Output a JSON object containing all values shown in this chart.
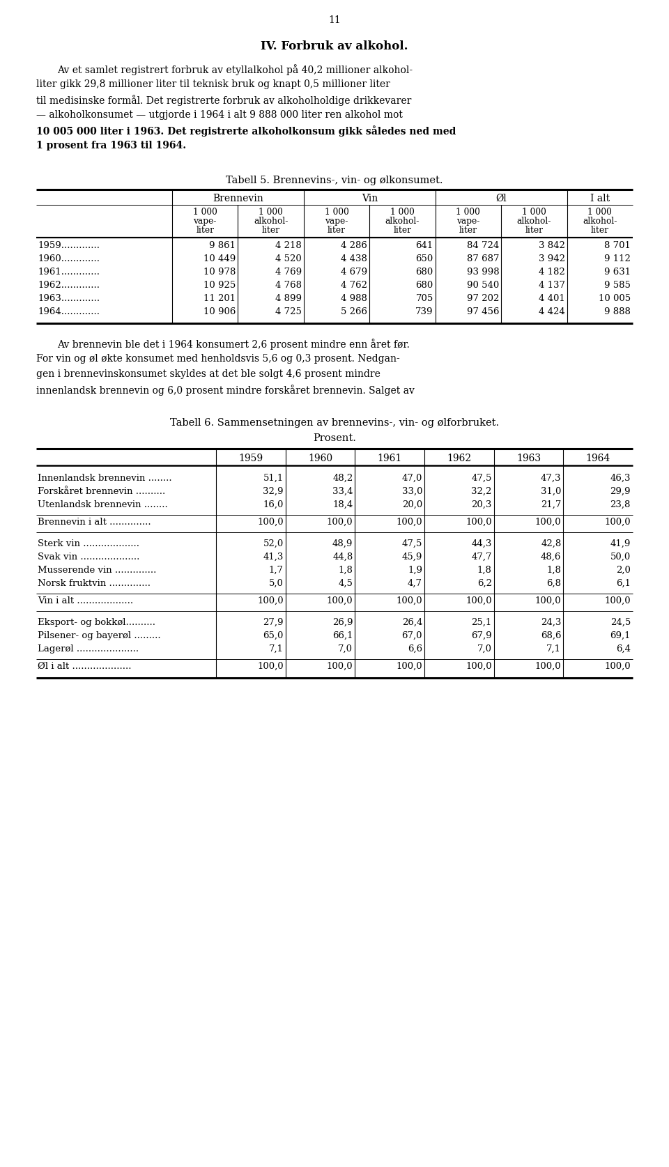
{
  "page_number": "11",
  "section_title": "IV. Forbruk av alkohol.",
  "paragraph1_lines": [
    "Av et samlet registrert forbruk av etyllalkohol på 40,2 millioner alkohol-",
    "liter gikk 29,8 millioner liter til teknisk bruk og knapt 0,5 millioner liter",
    "til medisinske formål. Det registrerte forbruk av alkoholholdige drikkevarer",
    "— alkoholkonsumet — utgjorde i 1964 i alt 9 888 000 liter ren alkohol mot",
    "10 005 000 liter i 1963. Det registrerte alkoholkonsum gikk således ned med",
    "1 prosent fra 1963 til 1964."
  ],
  "paragraph1_bold_from": 4,
  "table5_title": "Tabell 5. Brennevins-, vin- og ølkonsumet.",
  "table5_col_headers": [
    "Brennevin",
    "Vin",
    "Øl",
    "I alt"
  ],
  "table5_sub_headers": [
    "1 000\nvaре-\nliter",
    "1 000\nalkohol-\nliter",
    "1 000\nvaре-\nliter",
    "1 000\nalkohol-\nliter",
    "1 000\nvaре-\nliter",
    "1 000\nalkohol-\nliter",
    "1 000\nalkohol-\nliter"
  ],
  "table5_rows": [
    [
      "1959.............",
      "9 861",
      "4 218",
      "4 286",
      "641",
      "84 724",
      "3 842",
      "8 701"
    ],
    [
      "1960.............",
      "10 449",
      "4 520",
      "4 438",
      "650",
      "87 687",
      "3 942",
      "9 112"
    ],
    [
      "1961.............",
      "10 978",
      "4 769",
      "4 679",
      "680",
      "93 998",
      "4 182",
      "9 631"
    ],
    [
      "1962.............",
      "10 925",
      "4 768",
      "4 762",
      "680",
      "90 540",
      "4 137",
      "9 585"
    ],
    [
      "1963.............",
      "11 201",
      "4 899",
      "4 988",
      "705",
      "97 202",
      "4 401",
      "10 005"
    ],
    [
      "1964.............",
      "10 906",
      "4 725",
      "5 266",
      "739",
      "97 456",
      "4 424",
      "9 888"
    ]
  ],
  "paragraph2_lines": [
    "Av brennevin ble det i 1964 konsumert 2,6 prosent mindre enn året før.",
    "For vin og øl økte konsumet med henholdsvis 5,6 og 0,3 prosent. Nedgan-",
    "gen i brennevinskonsumet skyldes at det ble solgt 4,6 prosent mindre",
    "innenlandsk brennevin og 6,0 prosent mindre forskåret brennevin. Salget av"
  ],
  "table6_title": "Tabell 6. Sammensetningen av brennevins-, vin- og ølforbruket.",
  "table6_subtitle": "Prosent.",
  "table6_col_years": [
    "1959",
    "1960",
    "1961",
    "1962",
    "1963",
    "1964"
  ],
  "table6_sections": [
    {
      "rows": [
        [
          "Innenlandsk brennevin ........",
          "51,1",
          "48,2",
          "47,0",
          "47,5",
          "47,3",
          "46,3"
        ],
        [
          "Forskåret brennevin ..........",
          "32,9",
          "33,4",
          "33,0",
          "32,2",
          "31,0",
          "29,9"
        ],
        [
          "Utenlandsk brennevin ........",
          "16,0",
          "18,4",
          "20,0",
          "20,3",
          "21,7",
          "23,8"
        ]
      ],
      "total_row": [
        "Brennevin i alt ..............",
        "100,0",
        "100,0",
        "100,0",
        "100,0",
        "100,0",
        "100,0"
      ]
    },
    {
      "rows": [
        [
          "Sterk vin ...................",
          "52,0",
          "48,9",
          "47,5",
          "44,3",
          "42,8",
          "41,9"
        ],
        [
          "Svak vin ....................",
          "41,3",
          "44,8",
          "45,9",
          "47,7",
          "48,6",
          "50,0"
        ],
        [
          "Musserende vin ..............",
          "1,7",
          "1,8",
          "1,9",
          "1,8",
          "1,8",
          "2,0"
        ],
        [
          "Norsk fruktvin ..............",
          "5,0",
          "4,5",
          "4,7",
          "6,2",
          "6,8",
          "6,1"
        ]
      ],
      "total_row": [
        "Vin i alt ...................",
        "100,0",
        "100,0",
        "100,0",
        "100,0",
        "100,0",
        "100,0"
      ]
    },
    {
      "rows": [
        [
          "Eksport- og bokkøl..........",
          "27,9",
          "26,9",
          "26,4",
          "25,1",
          "24,3",
          "24,5"
        ],
        [
          "Pilsener- og bayerøl .........",
          "65,0",
          "66,1",
          "67,0",
          "67,9",
          "68,6",
          "69,1"
        ],
        [
          "Lagerøl .....................",
          "7,1",
          "7,0",
          "6,6",
          "7,0",
          "7,1",
          "6,4"
        ]
      ],
      "total_row": [
        "Øl i alt ....................",
        "100,0",
        "100,0",
        "100,0",
        "100,0",
        "100,0",
        "100,0"
      ]
    }
  ],
  "bg_color": "#ffffff",
  "text_color": "#000000"
}
